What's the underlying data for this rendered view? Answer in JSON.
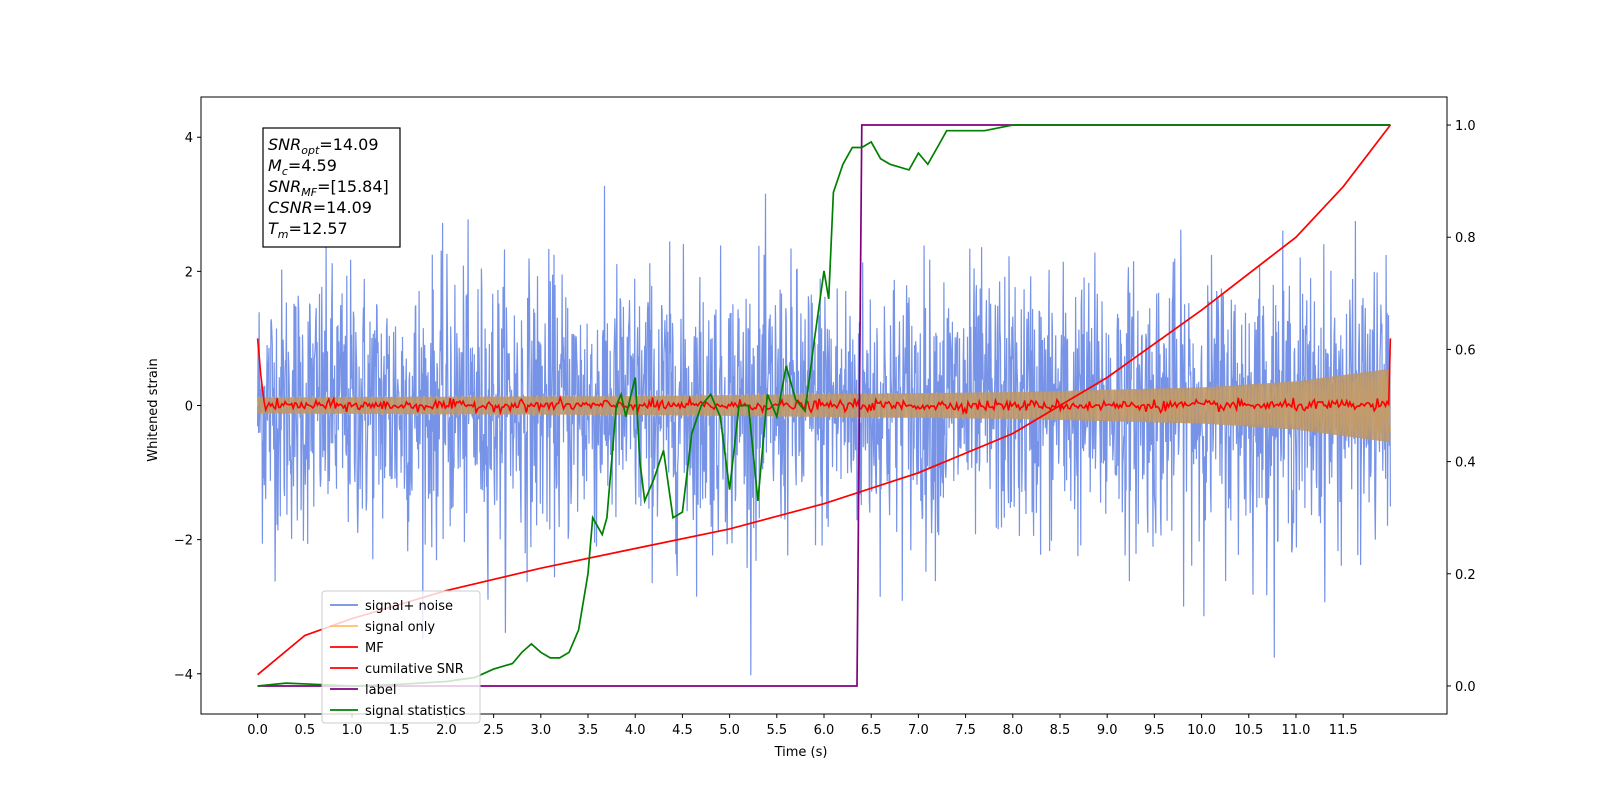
{
  "chart_data": {
    "type": "line",
    "xlabel": "Time (s)",
    "ylabel": "Whitened strain",
    "xlim": [
      -0.6,
      12.6
    ],
    "ylim": [
      -4.6,
      4.6
    ],
    "ylim_right": [
      -0.05,
      1.05
    ],
    "x_ticks": [
      "0.0",
      "0.5",
      "1.0",
      "1.5",
      "2.0",
      "2.5",
      "3.0",
      "3.5",
      "4.0",
      "4.5",
      "5.0",
      "5.5",
      "6.0",
      "6.5",
      "7.0",
      "7.5",
      "8.0",
      "8.5",
      "9.0",
      "9.5",
      "10.0",
      "10.5",
      "11.0",
      "11.5"
    ],
    "y_ticks_left": [
      "4",
      "2",
      "0",
      "−2",
      "−4"
    ],
    "y_ticks_right": [
      "1.0",
      "0.8",
      "0.6",
      "0.4",
      "0.2",
      "0.0"
    ],
    "annotation": {
      "lines": [
        {
          "sym": "SNR",
          "sub": "opt",
          "rest": "=14.09"
        },
        {
          "sym": "M",
          "sub": "c",
          "rest": "=4.59"
        },
        {
          "sym": "SNR",
          "sub": "MF",
          "rest": "=[15.84]"
        },
        {
          "sym": "CSNR",
          "sub": "",
          "rest": "=14.09"
        },
        {
          "sym": "T",
          "sub": "m",
          "rest": "=12.57"
        }
      ]
    },
    "legend_position": "lower-left",
    "legend": [
      {
        "label": "signal+ noise",
        "color": "#6f8de6"
      },
      {
        "label": "signal only",
        "color": "#ffbf6b"
      },
      {
        "label": "MF",
        "color": "#ff0000"
      },
      {
        "label": "cumilative SNR",
        "color": "#ff0000"
      },
      {
        "label": "label",
        "color": "#800080"
      },
      {
        "label": "signal statistics",
        "color": "#008000"
      }
    ],
    "series": [
      {
        "name": "signal+ noise",
        "axis": "left",
        "color": "#6f8de6",
        "x_range": [
          0.0,
          12.0
        ],
        "noise_std": 1.0,
        "peak_range": [
          -4.1,
          4.1
        ]
      },
      {
        "name": "signal only",
        "axis": "left",
        "color": "#ffbf6b",
        "envelope": {
          "x": [
            0.0,
            4.0,
            8.0,
            10.0,
            11.0,
            12.0
          ],
          "amp": [
            0.12,
            0.14,
            0.2,
            0.27,
            0.36,
            0.55
          ]
        }
      },
      {
        "name": "MF",
        "axis": "left",
        "color": "#ff0000",
        "x_range": [
          0.0,
          12.0
        ],
        "noise_amp": 0.08,
        "start_value": 1.0,
        "end_value": 1.0
      },
      {
        "name": "cumilative SNR",
        "axis": "right",
        "color": "#ff0000",
        "x": [
          0.0,
          0.5,
          1.0,
          2.0,
          3.0,
          4.0,
          5.0,
          6.0,
          7.0,
          8.0,
          9.0,
          10.0,
          11.0,
          11.5,
          12.0
        ],
        "y": [
          0.02,
          0.09,
          0.12,
          0.17,
          0.21,
          0.245,
          0.28,
          0.325,
          0.38,
          0.45,
          0.55,
          0.67,
          0.8,
          0.89,
          1.0
        ]
      },
      {
        "name": "label",
        "axis": "right",
        "color": "#800080",
        "x": [
          0.0,
          6.35,
          6.4,
          12.0
        ],
        "y": [
          0.0,
          0.0,
          1.0,
          1.0
        ]
      },
      {
        "name": "signal statistics",
        "axis": "right",
        "color": "#008000",
        "x": [
          0.0,
          0.3,
          0.6,
          1.0,
          1.5,
          2.0,
          2.3,
          2.5,
          2.7,
          2.8,
          2.9,
          3.0,
          3.1,
          3.2,
          3.3,
          3.4,
          3.5,
          3.55,
          3.65,
          3.7,
          3.8,
          3.85,
          3.9,
          4.0,
          4.05,
          4.1,
          4.2,
          4.3,
          4.4,
          4.5,
          4.6,
          4.7,
          4.8,
          4.9,
          5.0,
          5.1,
          5.2,
          5.3,
          5.4,
          5.5,
          5.6,
          5.7,
          5.8,
          5.9,
          6.0,
          6.05,
          6.1,
          6.2,
          6.3,
          6.4,
          6.5,
          6.6,
          6.7,
          6.9,
          7.0,
          7.1,
          7.2,
          7.3,
          7.5,
          7.7,
          8.0,
          8.5,
          9.0,
          10.0,
          11.0,
          12.0
        ],
        "y": [
          0.0,
          0.005,
          0.003,
          0.0,
          0.003,
          0.008,
          0.015,
          0.03,
          0.04,
          0.06,
          0.075,
          0.06,
          0.05,
          0.05,
          0.06,
          0.1,
          0.2,
          0.3,
          0.27,
          0.3,
          0.5,
          0.52,
          0.48,
          0.55,
          0.4,
          0.33,
          0.37,
          0.42,
          0.3,
          0.31,
          0.45,
          0.5,
          0.52,
          0.48,
          0.35,
          0.5,
          0.5,
          0.33,
          0.52,
          0.48,
          0.57,
          0.51,
          0.49,
          0.62,
          0.74,
          0.69,
          0.88,
          0.93,
          0.96,
          0.96,
          0.97,
          0.94,
          0.93,
          0.92,
          0.95,
          0.93,
          0.96,
          0.99,
          0.99,
          0.99,
          1.0,
          1.0,
          1.0,
          1.0,
          1.0,
          1.0
        ]
      }
    ]
  }
}
